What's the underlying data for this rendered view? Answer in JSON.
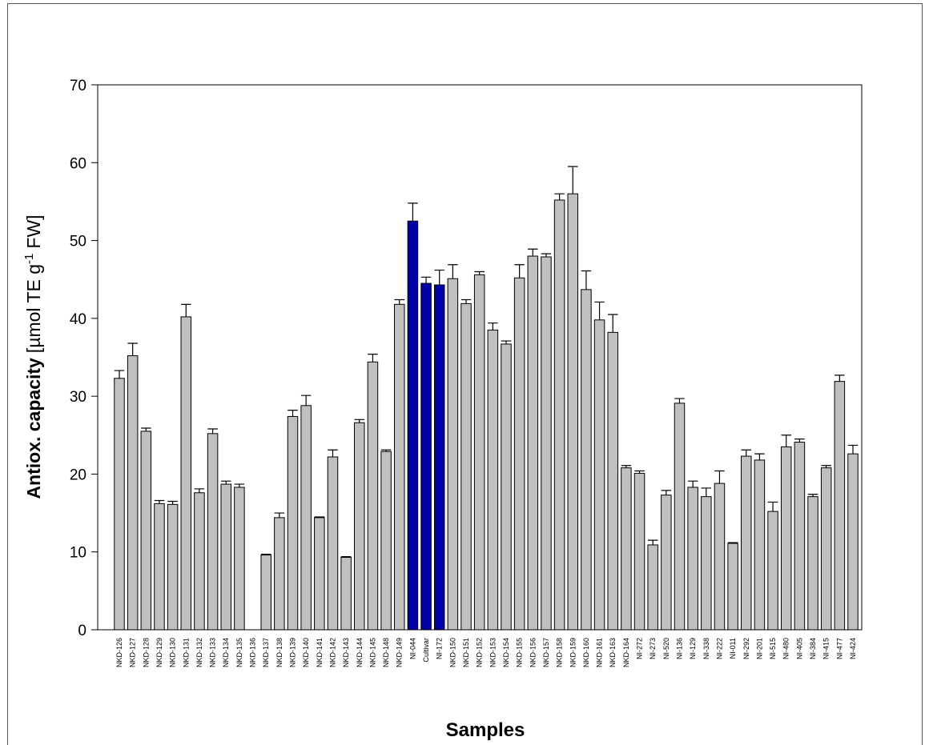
{
  "chart_data": {
    "type": "bar",
    "xlabel": "Samples",
    "ylabel_parts": [
      "Antiox. capacity",
      "[µmol TE g",
      "-1",
      "FW]"
    ],
    "categories": [
      "NKD-126",
      "NKD-127",
      "NKD-128",
      "NKD-129",
      "NKD-130",
      "NKD-131",
      "NKD-132",
      "NKD-133",
      "NKD-134",
      "NKD-135",
      "NKD-136",
      "NKD-137",
      "NKD-138",
      "NKD-139",
      "NKD-140",
      "NKD-141",
      "NKD-142",
      "NKD-143",
      "NKD-144",
      "NKD-145",
      "NKD-148",
      "NKD-149",
      "NI-044",
      "Cultivar",
      "NI-172",
      "NKD-150",
      "NKD-151",
      "NKD-152",
      "NKD-153",
      "NKD-154",
      "NKD-155",
      "NKD-156",
      "NKD-157",
      "NKD-158",
      "NKD-159",
      "NKD-160",
      "NKD-161",
      "NKD-163",
      "NKD-164",
      "NI-272",
      "NI-273",
      "NI-520",
      "NI-136",
      "NI-129",
      "NI-338",
      "NI-222",
      "NI-011",
      "NI-292",
      "NI-201",
      "NI-515",
      "NI-480",
      "NI-405",
      "NI-384",
      "NI-415",
      "NI-477",
      "NI-424"
    ],
    "values": [
      32.3,
      35.2,
      25.5,
      16.2,
      16.1,
      40.2,
      17.6,
      25.2,
      18.7,
      18.3,
      null,
      9.6,
      14.4,
      27.4,
      28.8,
      14.4,
      22.2,
      9.3,
      26.6,
      34.4,
      22.9,
      41.8,
      52.5,
      44.5,
      44.3,
      45.1,
      41.9,
      45.6,
      38.5,
      36.7,
      45.2,
      48.0,
      47.9,
      55.2,
      56.0,
      43.7,
      39.8,
      38.2,
      20.8,
      20.1,
      10.9,
      17.3,
      29.1,
      18.3,
      17.1,
      18.8,
      11.1,
      22.3,
      21.8,
      15.2,
      23.5,
      24.1,
      17.1,
      20.8,
      31.9,
      22.6
    ],
    "errors": [
      1.0,
      1.6,
      0.4,
      0.4,
      0.4,
      1.6,
      0.5,
      0.6,
      0.4,
      0.4,
      null,
      0.1,
      0.6,
      0.8,
      1.3,
      0.1,
      0.9,
      0.1,
      0.4,
      1.0,
      0.2,
      0.6,
      2.3,
      0.8,
      1.9,
      1.8,
      0.5,
      0.4,
      0.9,
      0.4,
      1.7,
      0.9,
      0.4,
      0.8,
      3.5,
      2.4,
      2.3,
      2.3,
      0.3,
      0.3,
      0.6,
      0.6,
      0.6,
      0.8,
      1.1,
      1.6,
      0.1,
      0.8,
      0.8,
      1.2,
      1.5,
      0.4,
      0.3,
      0.3,
      0.8,
      1.1
    ],
    "colors": [
      "#c0c0c0",
      "#c0c0c0",
      "#c0c0c0",
      "#c0c0c0",
      "#c0c0c0",
      "#c0c0c0",
      "#c0c0c0",
      "#c0c0c0",
      "#c0c0c0",
      "#c0c0c0",
      "#c0c0c0",
      "#c0c0c0",
      "#c0c0c0",
      "#c0c0c0",
      "#c0c0c0",
      "#c0c0c0",
      "#c0c0c0",
      "#c0c0c0",
      "#c0c0c0",
      "#c0c0c0",
      "#c0c0c0",
      "#c0c0c0",
      "#0000a8",
      "#0000a8",
      "#0000a8",
      "#c0c0c0",
      "#c0c0c0",
      "#c0c0c0",
      "#c0c0c0",
      "#c0c0c0",
      "#c0c0c0",
      "#c0c0c0",
      "#c0c0c0",
      "#c0c0c0",
      "#c0c0c0",
      "#c0c0c0",
      "#c0c0c0",
      "#c0c0c0",
      "#c0c0c0",
      "#c0c0c0",
      "#c0c0c0",
      "#c0c0c0",
      "#c0c0c0",
      "#c0c0c0",
      "#c0c0c0",
      "#c0c0c0",
      "#c0c0c0",
      "#c0c0c0",
      "#c0c0c0",
      "#c0c0c0",
      "#c0c0c0",
      "#c0c0c0",
      "#c0c0c0",
      "#c0c0c0",
      "#c0c0c0",
      "#c0c0c0"
    ],
    "ylim": [
      0,
      70
    ],
    "yticks": [
      0,
      10,
      20,
      30,
      40,
      50,
      60,
      70
    ],
    "grid": false
  }
}
